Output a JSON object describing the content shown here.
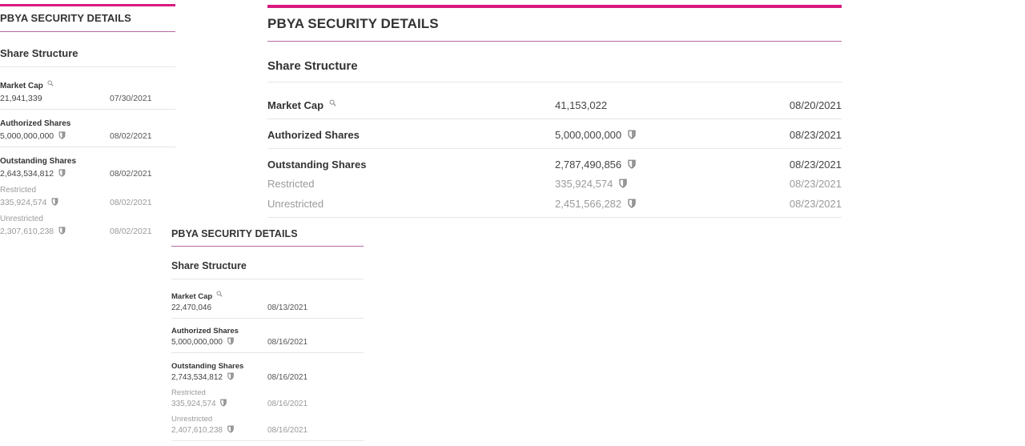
{
  "panels": [
    {
      "title": "PBYA SECURITY DETAILS",
      "section": "Share Structure",
      "market_cap": {
        "label": "Market Cap",
        "value": "21,941,339",
        "date": "07/30/2021"
      },
      "authorized": {
        "label": "Authorized Shares",
        "value": "5,000,000,000",
        "date": "08/02/2021"
      },
      "outstanding": {
        "label": "Outstanding Shares",
        "value": "2,643,534,812",
        "date": "08/02/2021"
      },
      "restricted": {
        "label": "Restricted",
        "value": "335,924,574",
        "date": "08/02/2021"
      },
      "unrestricted": {
        "label": "Unrestricted",
        "value": "2,307,610,238",
        "date": "08/02/2021"
      }
    },
    {
      "title": "PBYA SECURITY DETAILS",
      "section": "Share Structure",
      "market_cap": {
        "label": "Market Cap",
        "value": "41,153,022",
        "date": "08/20/2021"
      },
      "authorized": {
        "label": "Authorized Shares",
        "value": "5,000,000,000",
        "date": "08/23/2021"
      },
      "outstanding": {
        "label": "Outstanding Shares",
        "value": "2,787,490,856",
        "date": "08/23/2021"
      },
      "restricted": {
        "label": "Restricted",
        "value": "335,924,574",
        "date": "08/23/2021"
      },
      "unrestricted": {
        "label": "Unrestricted",
        "value": "2,451,566,282",
        "date": "08/23/2021"
      }
    },
    {
      "title": "PBYA SECURITY DETAILS",
      "section": "Share Structure",
      "market_cap": {
        "label": "Market Cap",
        "value": "22,470,046",
        "date": "08/13/2021"
      },
      "authorized": {
        "label": "Authorized Shares",
        "value": "5,000,000,000",
        "date": "08/16/2021"
      },
      "outstanding": {
        "label": "Outstanding Shares",
        "value": "2,743,534,812",
        "date": "08/16/2021"
      },
      "restricted": {
        "label": "Restricted",
        "value": "335,924,574",
        "date": "08/16/2021"
      },
      "unrestricted": {
        "label": "Unrestricted",
        "value": "2,407,610,238",
        "date": "08/16/2021"
      }
    }
  ],
  "icons": {
    "market_cap": "zoom-icon",
    "shares": "shield-icon"
  },
  "colors": {
    "accent": "#d81b7f",
    "muted_text": "#9a9a9a"
  }
}
